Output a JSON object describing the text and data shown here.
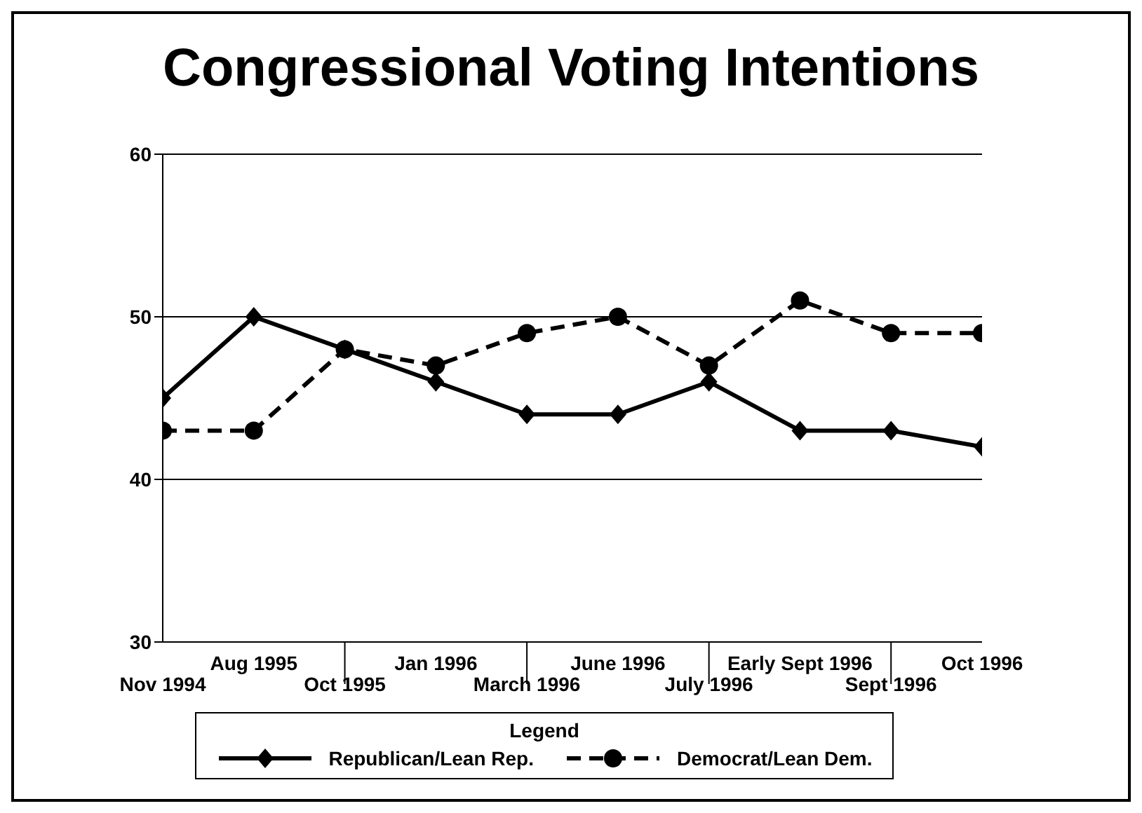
{
  "chart_data": {
    "type": "line",
    "title": "Congressional Voting Intentions",
    "categories": [
      "Nov 1994",
      "Aug 1995",
      "Oct 1995",
      "Jan 1996",
      "March 1996",
      "June 1996",
      "July 1996",
      "Early Sept 1996",
      "Sept 1996",
      "Oct 1996"
    ],
    "series": [
      {
        "name": "Republican/Lean Rep.",
        "color": "#000000",
        "marker": "diamond",
        "line_style": "solid",
        "values": [
          45,
          50,
          48,
          46,
          44,
          44,
          46,
          43,
          43,
          42
        ]
      },
      {
        "name": "Democrat/Lean Dem.",
        "color": "#000000",
        "marker": "circle",
        "line_style": "dashed",
        "values": [
          43,
          43,
          48,
          47,
          49,
          50,
          47,
          51,
          49,
          49
        ]
      }
    ],
    "ylim": [
      30,
      60
    ],
    "yticks": [
      30,
      40,
      50,
      60
    ],
    "grid": "y",
    "legend": "bottom",
    "legend_title": "Legend"
  }
}
